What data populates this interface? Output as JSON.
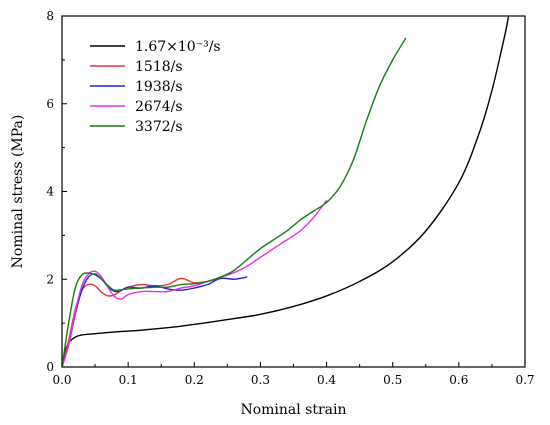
{
  "chart_data": {
    "type": "line",
    "title": "",
    "xlabel": "Nominal strain",
    "ylabel": "Nominal stress (MPa)",
    "xlim": [
      0,
      0.7
    ],
    "ylim": [
      0,
      8
    ],
    "x_ticks": [
      0.0,
      0.1,
      0.2,
      0.3,
      0.4,
      0.5,
      0.6,
      0.7
    ],
    "y_ticks": [
      0,
      2,
      4,
      6,
      8
    ],
    "x_tick_labels": [
      "0.0",
      "0.1",
      "0.2",
      "0.3",
      "0.4",
      "0.5",
      "0.6",
      "0.7"
    ],
    "y_tick_labels": [
      "0",
      "2",
      "4",
      "6",
      "8"
    ],
    "legend_position": "top-left",
    "grid": false,
    "series": [
      {
        "name": "1.67×10⁻³/s",
        "color": "#000000",
        "points": [
          [
            0,
            0
          ],
          [
            0.005,
            0.35
          ],
          [
            0.01,
            0.55
          ],
          [
            0.02,
            0.68
          ],
          [
            0.03,
            0.73
          ],
          [
            0.05,
            0.76
          ],
          [
            0.08,
            0.8
          ],
          [
            0.12,
            0.84
          ],
          [
            0.18,
            0.93
          ],
          [
            0.25,
            1.08
          ],
          [
            0.3,
            1.2
          ],
          [
            0.35,
            1.38
          ],
          [
            0.4,
            1.62
          ],
          [
            0.45,
            1.95
          ],
          [
            0.5,
            2.4
          ],
          [
            0.55,
            3.1
          ],
          [
            0.6,
            4.2
          ],
          [
            0.63,
            5.3
          ],
          [
            0.65,
            6.3
          ],
          [
            0.67,
            7.6
          ],
          [
            0.675,
            8.0
          ]
        ]
      },
      {
        "name": "1518/s",
        "color": "#e8343a",
        "points": [
          [
            0,
            0
          ],
          [
            0.01,
            0.6
          ],
          [
            0.02,
            1.3
          ],
          [
            0.03,
            1.75
          ],
          [
            0.04,
            1.88
          ],
          [
            0.05,
            1.85
          ],
          [
            0.06,
            1.7
          ],
          [
            0.07,
            1.62
          ],
          [
            0.08,
            1.65
          ],
          [
            0.09,
            1.75
          ],
          [
            0.1,
            1.82
          ],
          [
            0.12,
            1.88
          ],
          [
            0.14,
            1.85
          ],
          [
            0.16,
            1.88
          ],
          [
            0.18,
            2.02
          ],
          [
            0.2,
            1.92
          ],
          [
            0.22,
            1.95
          ],
          [
            0.24,
            2.02
          ],
          [
            0.26,
            2.0
          ]
        ]
      },
      {
        "name": "1938/s",
        "color": "#2323d6",
        "points": [
          [
            0,
            0
          ],
          [
            0.01,
            0.5
          ],
          [
            0.02,
            1.2
          ],
          [
            0.03,
            1.75
          ],
          [
            0.04,
            2.05
          ],
          [
            0.05,
            2.12
          ],
          [
            0.06,
            2.0
          ],
          [
            0.07,
            1.82
          ],
          [
            0.08,
            1.72
          ],
          [
            0.09,
            1.75
          ],
          [
            0.1,
            1.82
          ],
          [
            0.12,
            1.8
          ],
          [
            0.14,
            1.85
          ],
          [
            0.16,
            1.78
          ],
          [
            0.18,
            1.75
          ],
          [
            0.2,
            1.8
          ],
          [
            0.22,
            1.88
          ],
          [
            0.24,
            2.02
          ],
          [
            0.26,
            2.0
          ],
          [
            0.28,
            2.05
          ]
        ]
      },
      {
        "name": "2674/s",
        "color": "#e52ee5",
        "points": [
          [
            0,
            0
          ],
          [
            0.01,
            0.5
          ],
          [
            0.02,
            1.25
          ],
          [
            0.03,
            1.85
          ],
          [
            0.04,
            2.12
          ],
          [
            0.05,
            2.18
          ],
          [
            0.06,
            2.05
          ],
          [
            0.07,
            1.8
          ],
          [
            0.08,
            1.6
          ],
          [
            0.09,
            1.55
          ],
          [
            0.1,
            1.65
          ],
          [
            0.12,
            1.72
          ],
          [
            0.14,
            1.72
          ],
          [
            0.16,
            1.72
          ],
          [
            0.18,
            1.8
          ],
          [
            0.2,
            1.85
          ],
          [
            0.22,
            1.95
          ],
          [
            0.24,
            2.05
          ],
          [
            0.26,
            2.15
          ],
          [
            0.28,
            2.3
          ],
          [
            0.3,
            2.5
          ],
          [
            0.33,
            2.8
          ],
          [
            0.36,
            3.1
          ],
          [
            0.38,
            3.4
          ],
          [
            0.4,
            3.8
          ]
        ]
      },
      {
        "name": "3372/s",
        "color": "#167c16",
        "points": [
          [
            0,
            0
          ],
          [
            0.01,
            1.0
          ],
          [
            0.02,
            1.8
          ],
          [
            0.03,
            2.1
          ],
          [
            0.04,
            2.14
          ],
          [
            0.05,
            2.1
          ],
          [
            0.06,
            2.0
          ],
          [
            0.07,
            1.85
          ],
          [
            0.08,
            1.75
          ],
          [
            0.1,
            1.78
          ],
          [
            0.12,
            1.8
          ],
          [
            0.14,
            1.82
          ],
          [
            0.16,
            1.82
          ],
          [
            0.18,
            1.88
          ],
          [
            0.2,
            1.9
          ],
          [
            0.22,
            1.95
          ],
          [
            0.24,
            2.05
          ],
          [
            0.26,
            2.2
          ],
          [
            0.28,
            2.45
          ],
          [
            0.3,
            2.7
          ],
          [
            0.32,
            2.9
          ],
          [
            0.34,
            3.1
          ],
          [
            0.36,
            3.35
          ],
          [
            0.38,
            3.55
          ],
          [
            0.4,
            3.75
          ],
          [
            0.42,
            4.1
          ],
          [
            0.44,
            4.7
          ],
          [
            0.46,
            5.6
          ],
          [
            0.48,
            6.4
          ],
          [
            0.5,
            7.0
          ],
          [
            0.52,
            7.5
          ]
        ]
      }
    ]
  }
}
